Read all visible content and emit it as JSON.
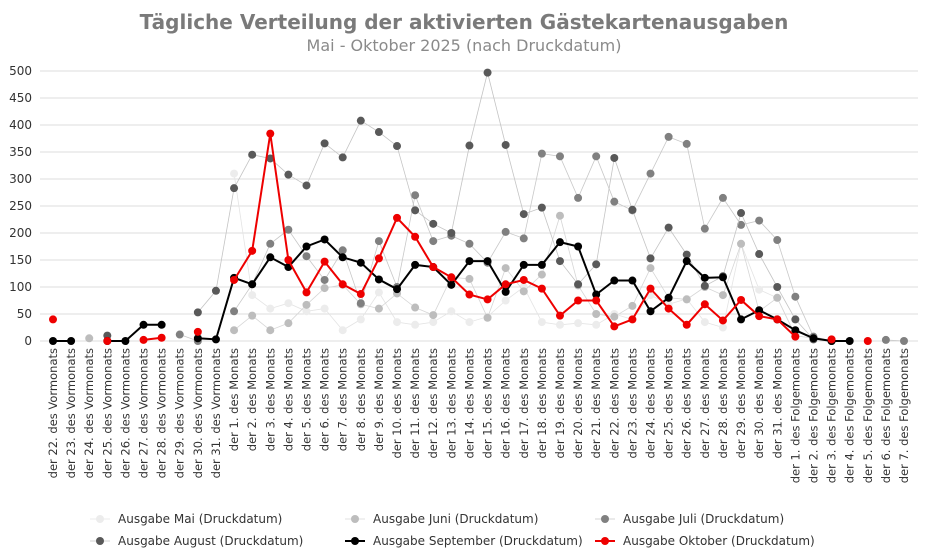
{
  "chart_data": {
    "type": "line",
    "title": "Tägliche Verteilung der aktivierten Gästekartenausgaben",
    "subtitle": "Mai - Oktober 2025 (nach Druckdatum)",
    "xlabel": "",
    "ylabel": "",
    "ylim": [
      0,
      500
    ],
    "yticks": [
      "0",
      "50",
      "100",
      "150",
      "200",
      "250",
      "300",
      "350",
      "400",
      "450",
      "500"
    ],
    "grid": true,
    "legend_position": "bottom",
    "categories": [
      "der 22. des Vormonats",
      "der 23. des Vormonats",
      "der 24. des Vormonats",
      "der 25. des Vormonats",
      "der 26. des Vormonats",
      "der 27. des Vormonats",
      "der 28. des Vormonats",
      "der 29. des Vormonats",
      "der 30. des Vormonats",
      "der 31. des Vormonats",
      "der 1. des Monats",
      "der 2. des Monats",
      "der 3. des Monats",
      "der 4. des Monats",
      "der 5. des Monats",
      "der 6. des Monats",
      "der 7. des Monats",
      "der 8. des Monats",
      "der 9. des Monats",
      "der 10. des Monats",
      "der 11. des Monats",
      "der 12. des Monats",
      "der 13. des Monats",
      "der 14. des Monats",
      "der 15. des Monats",
      "der 16. des Monats",
      "der 17. des Monats",
      "der 18. des Monats",
      "der 19. des Monats",
      "der 20. des Monats",
      "der 21. des Monats",
      "der 22. des Monats",
      "der 23. des Monats",
      "der 24. des Monats",
      "der 25. des Monats",
      "der 26. des Monats",
      "der 27. des Monats",
      "der 28. des Monats",
      "der 29. des Monats",
      "der 30. des Monats",
      "der 31. des Monats",
      "der 1. des Folgemonats",
      "der 2. des Folgemonats",
      "der 3. des Folgemonats",
      "der 4. des Folgemonats",
      "der 5. des Folgemonats",
      "der 6. des Folgemonats",
      "der 7. des Folgemonats"
    ],
    "series": [
      {
        "name": "Ausgabe Mai (Druckdatum)",
        "color": "#ececec",
        "line": "#e4e4e4",
        "width": 0.8,
        "values": [
          null,
          null,
          null,
          null,
          null,
          null,
          null,
          null,
          10,
          null,
          310,
          85,
          60,
          70,
          55,
          60,
          20,
          40,
          90,
          35,
          30,
          35,
          55,
          35,
          45,
          75,
          100,
          35,
          30,
          33,
          30,
          50,
          40,
          85,
          68,
          78,
          35,
          25,
          180,
          95,
          80,
          10,
          null,
          null,
          null,
          null,
          null,
          null
        ]
      },
      {
        "name": "Ausgabe Juni (Druckdatum)",
        "color": "#bdbdbd",
        "line": "#d6d6d6",
        "width": 0.8,
        "values": [
          null,
          null,
          5,
          null,
          null,
          null,
          null,
          null,
          2,
          null,
          20,
          47,
          20,
          33,
          67,
          98,
          104,
          68,
          60,
          88,
          62,
          48,
          118,
          115,
          43,
          135,
          92,
          123,
          232,
          103,
          50,
          45,
          65,
          135,
          80,
          77,
          100,
          85,
          180,
          55,
          80,
          10,
          5,
          null,
          null,
          null,
          null,
          null
        ]
      },
      {
        "name": "Ausgabe Juli (Druckdatum)",
        "color": "#808080",
        "line": "#c8c8c8",
        "width": 0.8,
        "values": [
          null,
          null,
          null,
          null,
          null,
          null,
          null,
          12,
          0,
          null,
          55,
          105,
          180,
          206,
          157,
          113,
          168,
          70,
          185,
          100,
          270,
          185,
          195,
          180,
          145,
          202,
          190,
          347,
          342,
          265,
          342,
          258,
          242,
          310,
          378,
          365,
          208,
          265,
          215,
          223,
          187,
          82,
          8,
          0,
          null,
          null,
          2,
          0
        ]
      },
      {
        "name": "Ausgabe August (Druckdatum)",
        "color": "#595959",
        "line": "#c4c4c4",
        "width": 0.8,
        "values": [
          null,
          null,
          null,
          10,
          null,
          null,
          null,
          null,
          53,
          93,
          283,
          345,
          338,
          308,
          288,
          366,
          340,
          408,
          387,
          361,
          242,
          217,
          200,
          362,
          497,
          363,
          235,
          247,
          148,
          105,
          142,
          339,
          243,
          153,
          210,
          160,
          102,
          120,
          237,
          161,
          100,
          40,
          3,
          0,
          null,
          null,
          null,
          null
        ]
      },
      {
        "name": "Ausgabe September (Druckdatum)",
        "color": "#000000",
        "line": "#000000",
        "width": 2,
        "values": [
          0,
          0,
          null,
          0,
          0,
          30,
          30,
          null,
          5,
          3,
          117,
          105,
          155,
          137,
          175,
          188,
          155,
          145,
          114,
          96,
          141,
          137,
          104,
          148,
          148,
          91,
          141,
          141,
          183,
          175,
          86,
          112,
          112,
          55,
          80,
          148,
          117,
          118,
          40,
          57,
          40,
          20,
          5,
          0,
          0,
          null,
          null,
          null
        ]
      },
      {
        "name": "Ausgabe Oktober (Druckdatum)",
        "color": "#ee0000",
        "line": "#ee0000",
        "width": 2,
        "values": [
          40,
          null,
          null,
          0,
          null,
          2,
          6,
          null,
          17,
          null,
          113,
          167,
          384,
          150,
          90,
          147,
          105,
          87,
          153,
          228,
          193,
          137,
          118,
          86,
          77,
          105,
          113,
          97,
          47,
          75,
          75,
          27,
          40,
          97,
          60,
          30,
          68,
          38,
          76,
          46,
          40,
          8,
          null,
          3,
          null,
          0,
          null,
          null
        ]
      }
    ]
  }
}
